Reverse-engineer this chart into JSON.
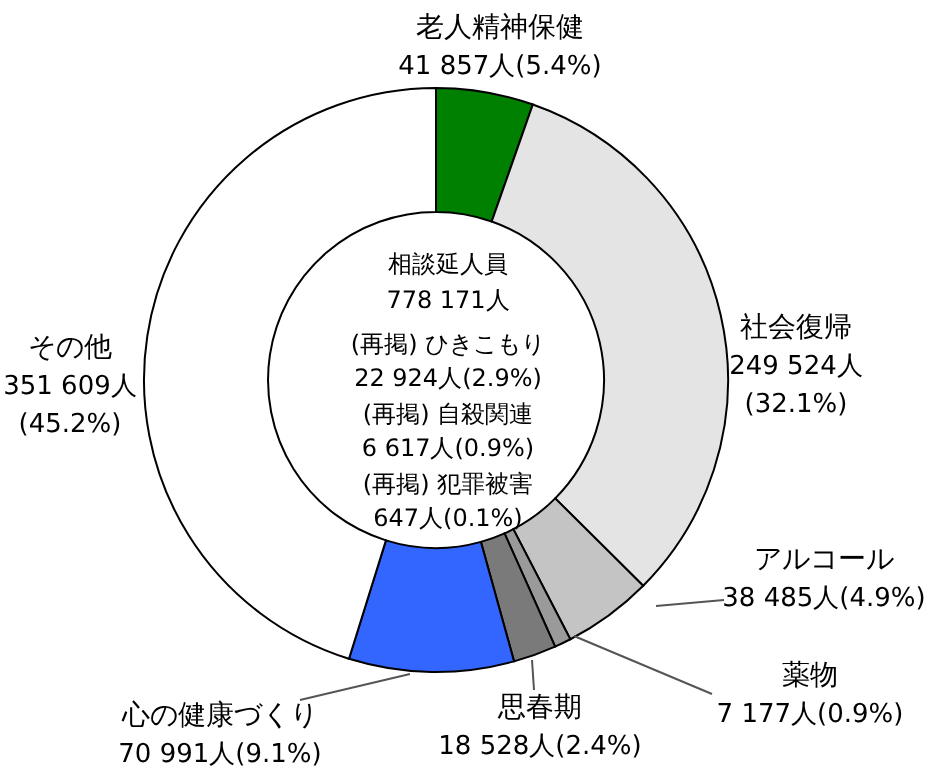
{
  "chart_data": {
    "type": "donut",
    "categories": [
      "老人精神保健",
      "社会復帰",
      "アルコール",
      "薬物",
      "思春期",
      "心の健康づくり",
      "その他"
    ],
    "values": [
      41857,
      249524,
      38485,
      7177,
      18528,
      70991,
      351609
    ],
    "colors": [
      "#008000",
      "#e4e4e4",
      "#c4c4c4",
      "#9a9a9a",
      "#7a7a7a",
      "#3366ff",
      "#ffffff"
    ],
    "value_labels": [
      "41 857人(5.4%)",
      "249 524人(32.1%)",
      "38 485人(4.9%)",
      "7 177人(0.9%)",
      "18 528人(2.4%)",
      "70 991人(9.1%)",
      "351 609人(45.2%)"
    ],
    "annotations": [
      "相談延人員",
      "778 171人",
      "(再掲) ひきこもり",
      "22 924人(2.9%)",
      "(再掲) 自殺関連",
      "6 617人(0.9%)",
      "(再掲) 犯罪被害",
      "647人(0.1%)"
    ]
  }
}
